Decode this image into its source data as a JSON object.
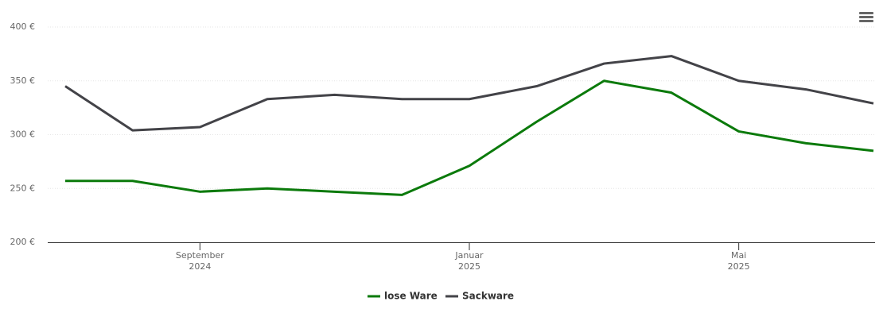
{
  "chart_data": {
    "type": "line",
    "x": [
      "2024-07",
      "2024-08",
      "2024-09",
      "2024-10",
      "2024-11",
      "2024-12",
      "2025-01",
      "2025-02",
      "2025-03",
      "2025-04",
      "2025-05",
      "2025-06",
      "2025-07"
    ],
    "series": [
      {
        "name": "lose Ware",
        "color": "#0b7a0b",
        "values": [
          257,
          257,
          247,
          250,
          247,
          244,
          271,
          312,
          350,
          339,
          303,
          292,
          285
        ]
      },
      {
        "name": "Sackware",
        "color": "#434348",
        "values": [
          345,
          304,
          307,
          333,
          337,
          333,
          333,
          345,
          366,
          373,
          350,
          342,
          329
        ]
      }
    ],
    "xlim": [
      "2024-07",
      "2025-07"
    ],
    "xticks": [
      {
        "value": "2024-09",
        "label": "September\n2024"
      },
      {
        "value": "2025-01",
        "label": "Januar\n2025"
      },
      {
        "value": "2025-05",
        "label": "Mai\n2025"
      }
    ],
    "ylim": [
      200,
      400
    ],
    "yticks": [
      {
        "value": 200,
        "label": "200 €"
      },
      {
        "value": 250,
        "label": "250 €"
      },
      {
        "value": 300,
        "label": "300 €"
      },
      {
        "value": 350,
        "label": "350 €"
      },
      {
        "value": 400,
        "label": "400 €"
      }
    ],
    "grid": true,
    "legend": "bottom"
  }
}
